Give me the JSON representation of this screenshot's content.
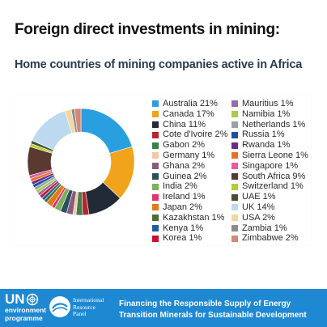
{
  "title": "Foreign direct investments in mining:",
  "subtitle": "Home countries of mining companies active in Africa",
  "chart_data": {
    "type": "pie",
    "title": "Home countries of mining companies active in Africa",
    "donut": true,
    "legend_position": "right",
    "series": [
      {
        "label": "Australia 21%",
        "name": "Australia",
        "value": 21,
        "color": "#2a9fe0"
      },
      {
        "label": "Canada 17%",
        "name": "Canada",
        "value": 17,
        "color": "#f0a31b"
      },
      {
        "label": "China 11%",
        "name": "China",
        "value": 11,
        "color": "#222a35"
      },
      {
        "label": "Cote d'Ivoire 2%",
        "name": "Cote d'Ivoire",
        "value": 2,
        "color": "#b5262d"
      },
      {
        "label": "Gabon 2%",
        "name": "Gabon",
        "value": 2,
        "color": "#3f7f4a"
      },
      {
        "label": "Germany 1%",
        "name": "Germany",
        "value": 1,
        "color": "#f4c6a6"
      },
      {
        "label": "Ghana 2%",
        "name": "Ghana",
        "value": 2,
        "color": "#8a5a7a"
      },
      {
        "label": "Guinea 2%",
        "name": "Guinea",
        "value": 2,
        "color": "#2e4f60"
      },
      {
        "label": "India 2%",
        "name": "India",
        "value": 2,
        "color": "#79b15f"
      },
      {
        "label": "Ireland 1%",
        "name": "Ireland",
        "value": 1,
        "color": "#e0336b"
      },
      {
        "label": "Japan 2%",
        "name": "Japan",
        "value": 2,
        "color": "#e07a1e"
      },
      {
        "label": "Kazakhstan 1%",
        "name": "Kazakhstan",
        "value": 1,
        "color": "#4c6f2f"
      },
      {
        "label": "Kenya 1%",
        "name": "Kenya",
        "value": 1,
        "color": "#1c5f9e"
      },
      {
        "label": "Korea 1%",
        "name": "Korea",
        "value": 1,
        "color": "#c8102e"
      },
      {
        "label": "Mauritius 1%",
        "name": "Mauritius",
        "value": 1,
        "color": "#9a6aa8"
      },
      {
        "label": "Namibia 1%",
        "name": "Namibia",
        "value": 1,
        "color": "#a8c94a"
      },
      {
        "label": "Netherlands 1%",
        "name": "Netherlands",
        "value": 1,
        "color": "#9aa0a6"
      },
      {
        "label": "Russia 1%",
        "name": "Russia",
        "value": 1,
        "color": "#1d4fa0"
      },
      {
        "label": "Rwanda 1%",
        "name": "Rwanda",
        "value": 1,
        "color": "#6d2a8c"
      },
      {
        "label": "Sierra Leone 1%",
        "name": "Sierra Leone",
        "value": 1,
        "color": "#e8731f"
      },
      {
        "label": "Singapore 1%",
        "name": "Singapore",
        "value": 1,
        "color": "#e85aa0"
      },
      {
        "label": "South Africa 9%",
        "name": "South Africa",
        "value": 9,
        "color": "#5a3a30"
      },
      {
        "label": "Switzerland 1%",
        "name": "Switzerland",
        "value": 1,
        "color": "#b5cf2e"
      },
      {
        "label": "UAE 1%",
        "name": "UAE",
        "value": 1,
        "color": "#4a4f2e"
      },
      {
        "label": "UK 14%",
        "name": "UK",
        "value": 14,
        "color": "#bcd9f0"
      },
      {
        "label": "USA 2%",
        "name": "USA",
        "value": 2,
        "color": "#f5d6a0"
      },
      {
        "label": "Zambia 1%",
        "name": "Zambia",
        "value": 1,
        "color": "#8c8c8c"
      },
      {
        "label": "Zimbabwe 2%",
        "name": "Zimbabwe",
        "value": 2,
        "color": "#d4877a"
      }
    ]
  },
  "footer": {
    "unep_logo_text": "UN",
    "unep_sub_line1": "environment",
    "unep_sub_line2": "programme",
    "irp_line1": "International",
    "irp_line2": "Resource",
    "irp_line3": "Panel",
    "caption_line1": "Financing the Responsible Supply of Energy",
    "caption_line2": "Transition Minerals for Sustainable Development",
    "background_color": "#1e88d2"
  }
}
